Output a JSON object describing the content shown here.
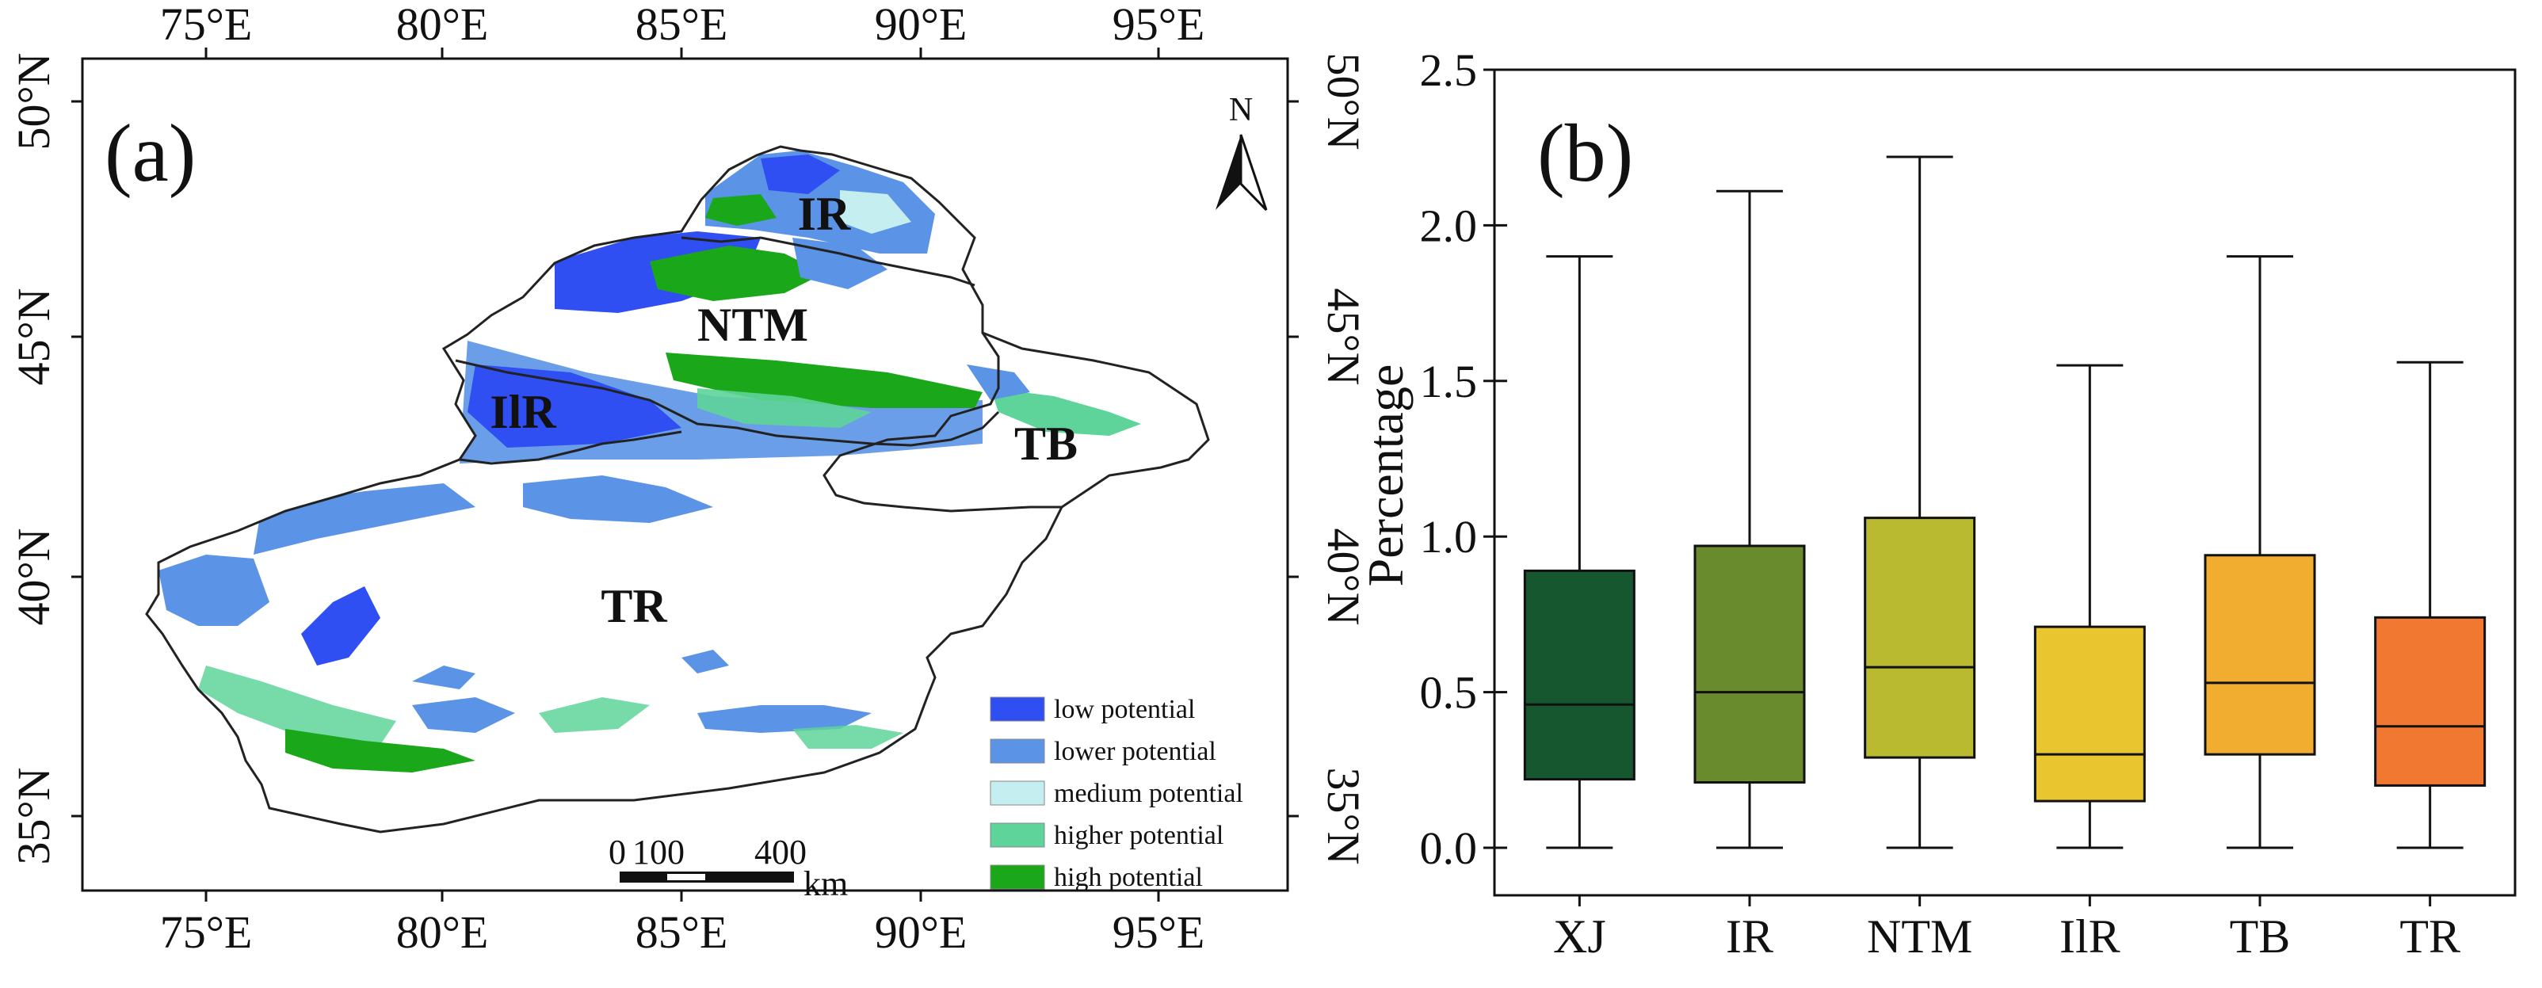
{
  "chart_data": [
    {
      "type": "map",
      "panel_label": "(a)",
      "x_ticks": [
        "75°E",
        "80°E",
        "85°E",
        "90°E",
        "95°E"
      ],
      "y_ticks": [
        "50°N",
        "45°N",
        "40°N",
        "35°N"
      ],
      "north_label": "N",
      "regions": [
        "IR",
        "NTM",
        "IlR",
        "TB",
        "TR"
      ],
      "scale_labels": {
        "start": "0",
        "mid": "100",
        "end": "400",
        "unit": "km"
      },
      "legend": [
        {
          "label": "low potential",
          "color": "#2f4ff2"
        },
        {
          "label": "lower potential",
          "color": "#5b93e6"
        },
        {
          "label": "medium potential",
          "color": "#c4eef0"
        },
        {
          "label": "higher potential",
          "color": "#5ed49a"
        },
        {
          "label": "high potential",
          "color": "#1aa81a"
        }
      ]
    },
    {
      "type": "box",
      "panel_label": "(b)",
      "ylabel": "Percentage",
      "xlabel": "",
      "ylim": [
        0,
        2.5
      ],
      "y_ticks": [
        "0.0",
        "0.5",
        "1.0",
        "1.5",
        "2.0",
        "2.5"
      ],
      "categories": [
        "XJ",
        "IR",
        "NTM",
        "IlR",
        "TB",
        "TR"
      ],
      "series": [
        {
          "name": "XJ",
          "whisker_low": 0,
          "q1": 0.22,
          "median": 0.46,
          "q3": 0.89,
          "whisker_high": 1.9,
          "color": "#17572f"
        },
        {
          "name": "IR",
          "whisker_low": 0,
          "q1": 0.21,
          "median": 0.5,
          "q3": 0.97,
          "whisker_high": 2.11,
          "color": "#6a8a2e"
        },
        {
          "name": "NTM",
          "whisker_low": 0,
          "q1": 0.29,
          "median": 0.58,
          "q3": 1.06,
          "whisker_high": 2.22,
          "color": "#b9ba30"
        },
        {
          "name": "IlR",
          "whisker_low": 0,
          "q1": 0.15,
          "median": 0.3,
          "q3": 0.71,
          "whisker_high": 1.55,
          "color": "#e9c530"
        },
        {
          "name": "TB",
          "whisker_low": 0,
          "q1": 0.3,
          "median": 0.53,
          "q3": 0.94,
          "whisker_high": 1.9,
          "color": "#f1ad30"
        },
        {
          "name": "TR",
          "whisker_low": 0,
          "q1": 0.2,
          "median": 0.39,
          "q3": 0.74,
          "whisker_high": 1.56,
          "color": "#f07830"
        }
      ]
    }
  ]
}
